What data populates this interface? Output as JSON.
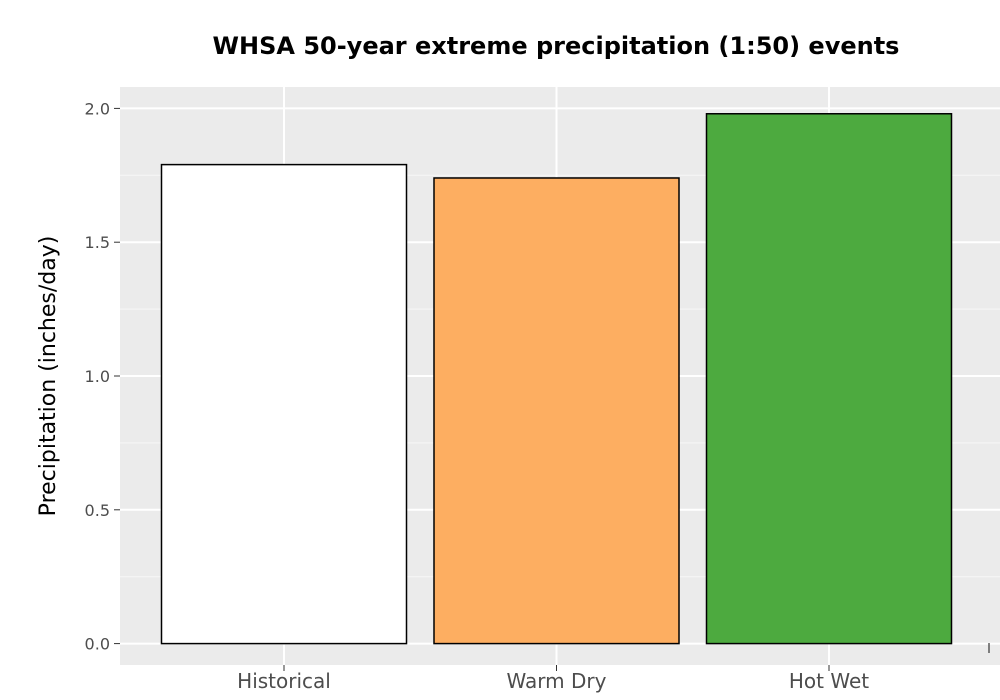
{
  "chart_data": {
    "type": "bar",
    "title": "WHSA 50-year extreme precipitation (1:50) events",
    "xlabel": "",
    "ylabel": "Precipitation (inches/day)",
    "categories": [
      "Historical",
      "Warm Dry",
      "Hot Wet"
    ],
    "values": [
      1.79,
      1.74,
      1.98
    ],
    "colors": [
      "#ffffff",
      "#fdae61",
      "#4daa3f"
    ],
    "ylim": [
      -0.08,
      2.08
    ],
    "yticks": [
      0.0,
      0.5,
      1.0,
      1.5,
      2.0
    ],
    "ytick_labels": [
      "0.0",
      "0.5",
      "1.0",
      "1.5",
      "2.0"
    ],
    "grid": true,
    "panel_background": "#ebebeb",
    "bar_outline": "#000000"
  }
}
